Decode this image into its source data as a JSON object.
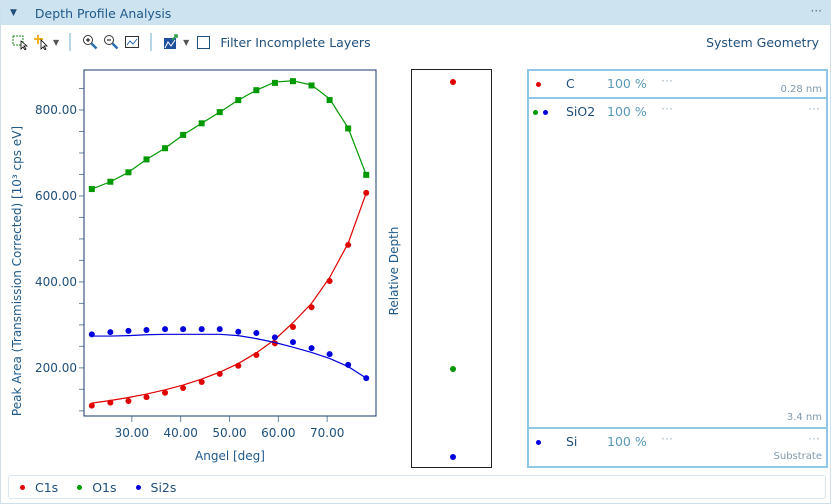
{
  "header": {
    "title": "Depth Profile Analysis",
    "more": "···"
  },
  "toolbar": {
    "filter_label": "Filter Incomplete Layers",
    "filter_checked": false,
    "system_geometry": "System Geometry",
    "icons": [
      "select-rect-icon",
      "add-point-cursor-icon",
      "zoom-in-icon",
      "zoom-out-icon",
      "zoom-fit-icon",
      "chart-export-icon"
    ]
  },
  "chart_data": {
    "type": "scatter",
    "xlabel": "Angel [deg]",
    "ylabel": "Peak Area (Transmission Corrected) [10³ cps eV]",
    "xlim": [
      20.2,
      80
    ],
    "ylim": [
      88,
      893
    ],
    "xticks": [
      "30.00",
      "40.00",
      "50.00",
      "60.00",
      "70.00"
    ],
    "yticks": [
      "200.00",
      "400.00",
      "600.00",
      "800.00"
    ],
    "x": [
      21.8,
      25.6,
      29.3,
      33.0,
      36.8,
      40.5,
      44.3,
      48.0,
      51.8,
      55.5,
      59.3,
      63.0,
      66.8,
      70.5,
      74.3,
      78.0
    ],
    "series": [
      {
        "name": "C1s",
        "color": "#e00000",
        "values": [
          112,
          119,
          123,
          132,
          142,
          153,
          167,
          186,
          205,
          230,
          257,
          295,
          341,
          402,
          486,
          607
        ],
        "fit": [
          118,
          124,
          131,
          139,
          149,
          160,
          174,
          190,
          210,
          235,
          266,
          305,
          350,
          410,
          490,
          607
        ]
      },
      {
        "name": "O1s",
        "color": "#009900",
        "values": [
          616,
          633,
          655,
          685,
          711,
          742,
          769,
          795,
          823,
          846,
          863,
          867,
          857,
          823,
          757,
          649
        ],
        "fit": [
          616,
          633,
          655,
          685,
          711,
          742,
          769,
          795,
          823,
          846,
          865,
          868,
          858,
          826,
          758,
          649
        ]
      },
      {
        "name": "Si2s",
        "color": "#0000dd",
        "values": [
          278,
          283,
          286,
          288,
          290,
          290,
          290,
          290,
          284,
          281,
          271,
          260,
          246,
          232,
          207,
          176
        ],
        "fit": [
          274,
          274,
          275,
          277,
          278,
          278,
          278,
          278,
          275,
          268,
          259,
          248,
          236,
          222,
          203,
          176
        ]
      }
    ]
  },
  "depth_panel": {
    "label": "Relative Depth"
  },
  "layers": [
    {
      "name": "C",
      "percent": "100 %",
      "more": "···",
      "thickness": "0.28 nm",
      "dots": [
        "#e00000"
      ]
    },
    {
      "name": "SiO2",
      "percent": "100 %",
      "more": "···",
      "right_more": "···",
      "thickness": "3.4 nm",
      "dots": [
        "#009900",
        "#0000dd"
      ]
    },
    {
      "name": "Si",
      "percent": "100 %",
      "more": "···",
      "right_more": "···",
      "thickness": "Substrate",
      "dots": [
        "#0000dd"
      ]
    }
  ],
  "legend": [
    {
      "label": "C1s",
      "color": "#e00000"
    },
    {
      "label": "O1s",
      "color": "#009900"
    },
    {
      "label": "Si2s",
      "color": "#0000dd"
    }
  ]
}
